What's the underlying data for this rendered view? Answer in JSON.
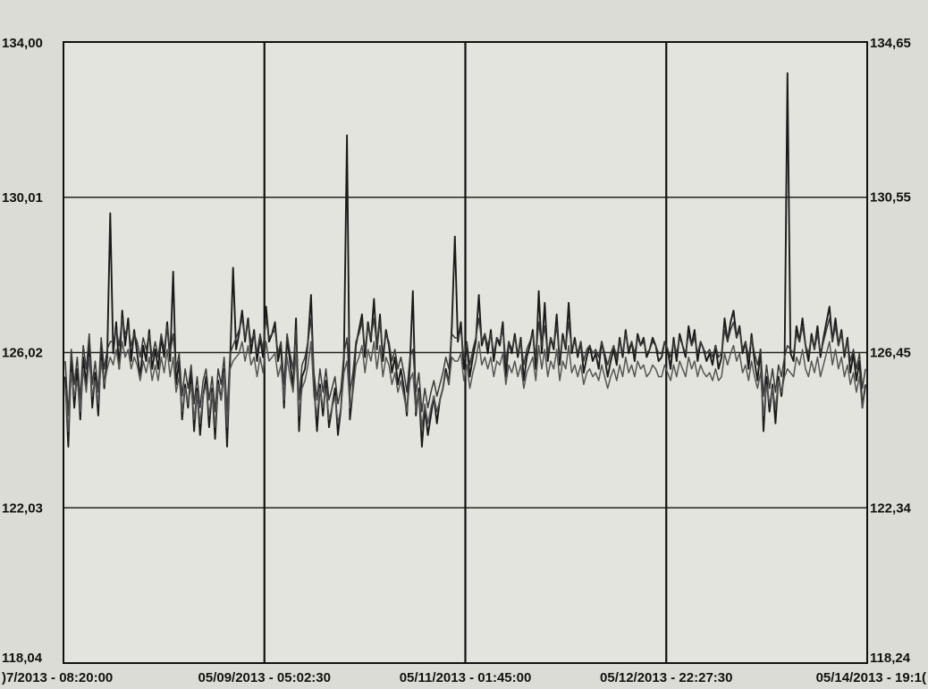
{
  "chart_data": {
    "type": "line",
    "title": "",
    "grid": true,
    "left_axis": {
      "ticks": [
        "134,00",
        "130,01",
        "126,02",
        "122,03",
        "118,04"
      ],
      "tick_values": [
        134.0,
        130.01,
        126.02,
        122.03,
        118.04
      ],
      "range": [
        118.04,
        134.0
      ]
    },
    "right_axis": {
      "ticks": [
        "134,65",
        "130,55",
        "126,45",
        "122,34",
        "118,24"
      ],
      "tick_values": [
        134.65,
        130.55,
        126.45,
        122.34,
        118.24
      ],
      "range": [
        118.24,
        134.65
      ]
    },
    "x_axis": {
      "ticks": [
        ")7/2013 - 08:20:00",
        "05/09/2013 - 05:02:30",
        "05/11/2013 - 01:45:00",
        "05/12/2013 - 22:27:30",
        "05/14/2013 - 19:1("
      ],
      "range": [
        0,
        4
      ]
    },
    "series": [
      {
        "color": "#1a1a1a",
        "values": [
          125.4,
          123.6,
          125.9,
          124.6,
          125.6,
          124.3,
          125.9,
          125.2,
          126.3,
          124.6,
          125.5,
          124.4,
          126.2,
          125.1,
          125.9,
          129.6,
          126.0,
          126.8,
          125.6,
          127.1,
          126.2,
          126.9,
          125.8,
          126.6,
          126.0,
          125.4,
          126.2,
          125.8,
          126.6,
          125.6,
          126.1,
          125.6,
          126.4,
          125.9,
          126.8,
          125.8,
          128.1,
          125.2,
          125.8,
          124.3,
          125.2,
          124.6,
          125.5,
          124.0,
          125.1,
          123.9,
          124.9,
          125.4,
          124.1,
          125.1,
          123.8,
          125.3,
          124.8,
          125.6,
          123.6,
          125.8,
          128.2,
          126.1,
          126.5,
          127.1,
          126.3,
          126.9,
          126.0,
          126.6,
          125.8,
          126.4,
          125.9,
          127.2,
          126.3,
          126.5,
          126.8,
          125.8,
          126.2,
          124.6,
          126.4,
          125.8,
          125.1,
          126.9,
          124.0,
          125.4,
          125.6,
          126.3,
          127.5,
          125.2,
          124.0,
          125.2,
          124.4,
          125.3,
          124.1,
          124.6,
          125.1,
          123.9,
          124.6,
          125.9,
          131.6,
          124.3,
          125.1,
          126.2,
          126.6,
          127.0,
          125.9,
          126.8,
          126.3,
          127.4,
          126.1,
          127.0,
          125.8,
          126.6,
          126.2,
          125.5,
          125.9,
          125.2,
          125.6,
          125.1,
          124.4,
          125.7,
          127.6,
          124.4,
          125.1,
          123.6,
          124.6,
          123.9,
          124.4,
          124.9,
          124.2,
          124.8,
          125.1,
          125.6,
          125.2,
          126.7,
          129.0,
          126.3,
          126.8,
          125.6,
          126.2,
          125.4,
          125.9,
          126.3,
          127.5,
          126.2,
          126.5,
          126.0,
          126.6,
          125.8,
          126.4,
          126.2,
          126.8,
          125.4,
          126.3,
          126.0,
          126.5,
          125.9,
          126.4,
          125.3,
          125.9,
          126.2,
          126.6,
          125.6,
          127.6,
          126.0,
          127.3,
          125.8,
          126.4,
          126.1,
          127.0,
          125.7,
          126.5,
          126.1,
          127.3,
          126.0,
          126.4,
          125.9,
          126.3,
          125.5,
          125.9,
          126.2,
          125.8,
          126.0,
          125.6,
          126.3,
          125.9,
          125.4,
          125.8,
          126.1,
          125.7,
          126.4,
          125.9,
          126.6,
          126.0,
          126.3,
          125.8,
          126.5,
          126.2,
          126.4,
          125.9,
          126.1,
          126.4,
          126.2,
          125.8,
          125.9,
          126.3,
          126.1,
          125.6,
          126.4,
          125.8,
          126.5,
          126.2,
          125.9,
          126.7,
          126.2,
          126.6,
          125.8,
          126.3,
          126.1,
          125.8,
          126.0,
          125.7,
          126.2,
          125.6,
          125.9,
          126.9,
          126.3,
          126.8,
          127.1,
          126.4,
          126.7,
          126.0,
          126.3,
          125.6,
          126.5,
          125.8,
          125.3,
          126.1,
          124.0,
          125.4,
          124.5,
          125.2,
          124.2,
          125.4,
          124.9,
          125.6,
          133.2,
          126.0,
          125.8,
          126.7,
          126.3,
          126.9,
          126.2,
          125.8,
          126.5,
          126.1,
          126.7,
          125.9,
          126.4,
          126.8,
          127.2,
          126.3,
          126.9,
          126.2,
          126.6,
          125.9,
          126.4,
          125.5,
          126.0,
          125.3,
          125.8,
          124.6,
          125.2
        ],
        "spike_indices": [
          15,
          36,
          55,
          94,
          117,
          129,
          239
        ]
      },
      {
        "color": "#3a3a3a",
        "values": [
          125.8,
          124.4,
          126.1,
          125.2,
          125.9,
          124.8,
          126.2,
          125.6,
          126.5,
          125.2,
          125.8,
          125.0,
          126.4,
          125.6,
          126.1,
          126.3,
          126.3,
          126.6,
          126.2,
          126.9,
          126.5,
          126.7,
          126.2,
          126.5,
          126.3,
          125.9,
          126.4,
          126.1,
          126.5,
          125.9,
          126.3,
          125.9,
          126.5,
          126.1,
          126.7,
          126.0,
          126.5,
          125.6,
          126.0,
          124.9,
          125.6,
          125.1,
          125.7,
          124.7,
          125.4,
          124.6,
          125.3,
          125.6,
          124.8,
          125.4,
          124.5,
          125.6,
          125.2,
          125.9,
          124.5,
          126.0,
          126.2,
          126.4,
          126.6,
          126.9,
          126.4,
          126.8,
          126.3,
          126.5,
          126.0,
          126.5,
          126.1,
          126.9,
          126.4,
          126.5,
          126.6,
          126.0,
          126.3,
          125.2,
          126.5,
          126.0,
          125.6,
          126.6,
          124.8,
          125.7,
          125.9,
          126.3,
          126.9,
          125.5,
          124.8,
          125.6,
          125.0,
          125.6,
          124.8,
          125.1,
          125.4,
          124.7,
          125.1,
          126.0,
          126.4,
          125.0,
          125.5,
          126.3,
          126.5,
          126.8,
          126.1,
          126.7,
          126.4,
          126.9,
          126.2,
          126.8,
          126.0,
          126.5,
          126.3,
          125.8,
          126.1,
          125.6,
          125.9,
          125.5,
          125.0,
          125.9,
          126.1,
          125.0,
          125.5,
          124.5,
          125.1,
          124.6,
          125.0,
          125.3,
          124.9,
          125.2,
          125.5,
          125.9,
          125.6,
          126.5,
          126.4,
          126.4,
          126.6,
          125.9,
          126.3,
          125.7,
          126.1,
          126.4,
          126.9,
          126.3,
          126.5,
          126.2,
          126.5,
          126.0,
          126.4,
          126.3,
          126.6,
          125.8,
          126.3,
          126.1,
          126.4,
          126.0,
          126.3,
          125.7,
          126.1,
          126.3,
          126.5,
          125.9,
          126.8,
          126.2,
          126.7,
          126.0,
          126.4,
          126.2,
          126.7,
          125.9,
          126.4,
          126.2,
          126.8,
          126.1,
          126.3,
          126.0,
          126.3,
          125.8,
          126.1,
          126.2,
          126.0,
          126.1,
          125.9,
          126.3,
          126.0,
          125.7,
          126.0,
          126.2,
          125.9,
          126.3,
          126.0,
          126.5,
          126.1,
          126.3,
          126.0,
          126.4,
          126.2,
          126.3,
          126.0,
          126.1,
          126.3,
          126.2,
          126.0,
          126.0,
          126.3,
          126.1,
          125.9,
          126.3,
          126.0,
          126.4,
          126.2,
          126.0,
          126.5,
          126.2,
          126.4,
          126.0,
          126.3,
          126.1,
          126.0,
          126.1,
          125.9,
          126.2,
          125.9,
          126.0,
          126.6,
          126.3,
          126.6,
          126.8,
          126.4,
          126.6,
          126.1,
          126.3,
          125.9,
          126.4,
          126.0,
          125.7,
          126.1,
          124.9,
          125.7,
          125.1,
          125.6,
          125.0,
          125.7,
          125.4,
          125.9,
          126.2,
          126.1,
          126.0,
          126.5,
          126.3,
          126.7,
          126.2,
          126.0,
          126.4,
          126.1,
          126.5,
          126.0,
          126.3,
          126.6,
          126.9,
          126.3,
          126.7,
          126.2,
          126.5,
          126.0,
          126.3,
          125.8,
          126.1,
          125.6,
          126.0,
          125.1,
          125.6
        ]
      },
      {
        "color": "#555555",
        "values": [
          125.1,
          124.0,
          125.5,
          124.9,
          125.3,
          124.5,
          125.6,
          125.0,
          125.9,
          124.9,
          125.3,
          124.7,
          125.8,
          125.2,
          125.6,
          125.9,
          125.7,
          126.1,
          125.6,
          126.3,
          125.9,
          126.1,
          125.6,
          125.9,
          125.7,
          125.3,
          125.8,
          125.5,
          125.9,
          125.3,
          125.7,
          125.3,
          125.9,
          125.5,
          126.1,
          125.4,
          125.9,
          125.0,
          125.4,
          124.5,
          125.1,
          124.7,
          125.2,
          124.3,
          125.0,
          124.2,
          124.9,
          125.2,
          124.4,
          125.0,
          124.1,
          125.2,
          124.8,
          125.5,
          124.1,
          125.6,
          125.8,
          125.9,
          126.0,
          126.3,
          125.8,
          126.2,
          125.7,
          125.9,
          125.4,
          125.9,
          125.5,
          126.3,
          125.8,
          125.9,
          126.0,
          125.4,
          125.7,
          124.8,
          125.9,
          125.4,
          125.0,
          126.0,
          124.4,
          125.1,
          125.3,
          125.7,
          126.3,
          124.9,
          124.4,
          125.1,
          124.6,
          125.1,
          124.3,
          124.6,
          124.9,
          124.2,
          124.6,
          125.5,
          125.8,
          124.6,
          125.0,
          125.7,
          125.9,
          126.2,
          125.5,
          126.1,
          125.8,
          126.3,
          125.6,
          126.2,
          125.4,
          125.9,
          125.7,
          125.2,
          125.5,
          125.0,
          125.3,
          124.9,
          124.5,
          125.3,
          125.5,
          124.5,
          125.0,
          124.1,
          124.7,
          124.2,
          124.6,
          124.9,
          124.5,
          124.8,
          125.1,
          125.5,
          125.2,
          125.9,
          125.8,
          125.8,
          126.0,
          125.3,
          125.7,
          125.1,
          125.5,
          125.8,
          126.3,
          125.7,
          125.9,
          125.6,
          125.9,
          125.4,
          125.8,
          125.7,
          126.0,
          125.2,
          125.7,
          125.5,
          125.8,
          125.4,
          125.7,
          125.1,
          125.5,
          125.7,
          125.9,
          125.3,
          126.2,
          125.6,
          126.1,
          125.4,
          125.8,
          125.6,
          126.1,
          125.3,
          125.8,
          125.6,
          126.2,
          125.5,
          125.7,
          125.4,
          125.7,
          125.2,
          125.5,
          125.6,
          125.4,
          125.5,
          125.3,
          125.7,
          125.4,
          125.1,
          125.4,
          125.6,
          125.3,
          125.7,
          125.4,
          125.9,
          125.5,
          125.7,
          125.4,
          125.8,
          125.6,
          125.7,
          125.4,
          125.5,
          125.7,
          125.6,
          125.4,
          125.4,
          125.7,
          125.5,
          125.3,
          125.7,
          125.4,
          125.8,
          125.6,
          125.4,
          125.9,
          125.6,
          125.8,
          125.4,
          125.7,
          125.5,
          125.4,
          125.5,
          125.3,
          125.6,
          125.3,
          125.4,
          126.0,
          125.7,
          126.0,
          126.2,
          125.8,
          126.0,
          125.5,
          125.7,
          125.3,
          125.8,
          125.4,
          125.1,
          125.5,
          124.4,
          125.2,
          124.7,
          125.1,
          124.6,
          125.3,
          125.0,
          125.4,
          125.6,
          125.5,
          125.4,
          125.9,
          125.7,
          126.1,
          125.6,
          125.4,
          125.8,
          125.5,
          125.9,
          125.4,
          125.7,
          126.0,
          126.3,
          125.7,
          126.1,
          125.6,
          125.9,
          125.4,
          125.7,
          125.2,
          125.5,
          125.0,
          125.4,
          124.6,
          125.1
        ]
      }
    ]
  }
}
